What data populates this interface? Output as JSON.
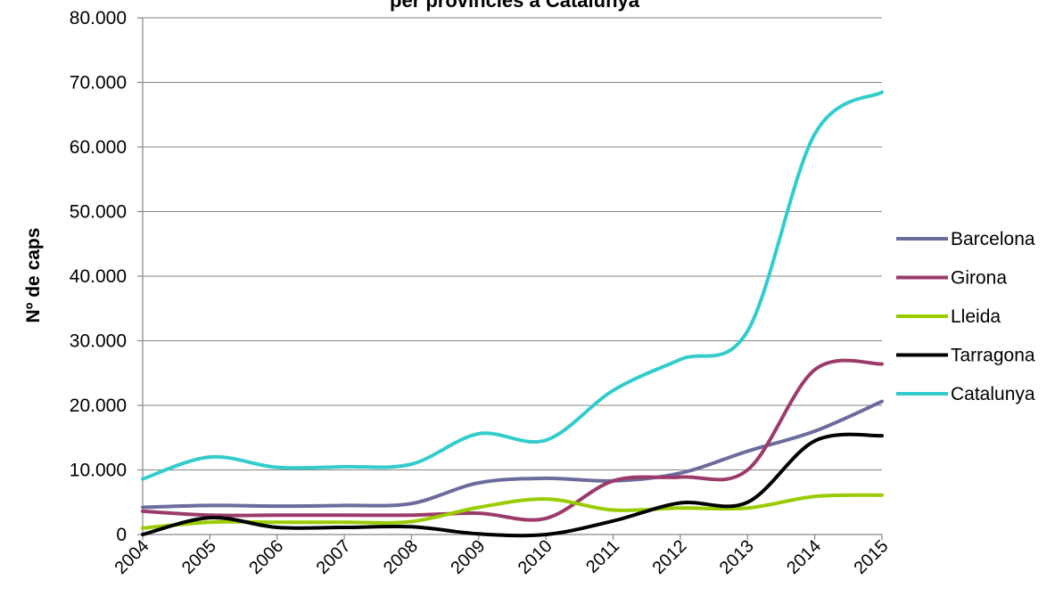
{
  "chart_data": {
    "type": "line",
    "title": "per províncies a Catalunya",
    "xlabel": "",
    "ylabel": "Nº de caps",
    "categories": [
      "2004",
      "2005",
      "2006",
      "2007",
      "2008",
      "2009",
      "2010",
      "2011",
      "2012",
      "2013",
      "2014",
      "2015"
    ],
    "y_ticks": [
      "0",
      "10.000",
      "20.000",
      "30.000",
      "40.000",
      "50.000",
      "60.000",
      "70.000",
      "80.000"
    ],
    "ylim": [
      0,
      80000
    ],
    "grid": "horizontal",
    "legend_position": "right",
    "series": [
      {
        "name": "Barcelona",
        "color": "#6B6B9E",
        "values": [
          4200,
          4500,
          4400,
          4500,
          4800,
          8000,
          8700,
          8300,
          9500,
          12900,
          16000,
          20600
        ]
      },
      {
        "name": "Girona",
        "color": "#9B3B6B",
        "values": [
          3600,
          3000,
          3000,
          3000,
          3000,
          3300,
          2500,
          8300,
          8900,
          10000,
          25500,
          26400
        ]
      },
      {
        "name": "Lleida",
        "color": "#99CC00",
        "values": [
          1000,
          1900,
          1900,
          1900,
          2000,
          4200,
          5500,
          3800,
          4100,
          4100,
          5900,
          6100
        ]
      },
      {
        "name": "Tarragona",
        "color": "#000000",
        "values": [
          0,
          2600,
          1100,
          1100,
          1200,
          100,
          0,
          2100,
          4900,
          5000,
          14500,
          15300
        ]
      },
      {
        "name": "Catalunya",
        "color": "#33CCCC",
        "values": [
          8600,
          12000,
          10400,
          10500,
          10900,
          15600,
          14600,
          22300,
          27100,
          31500,
          62000,
          68500
        ]
      }
    ]
  }
}
